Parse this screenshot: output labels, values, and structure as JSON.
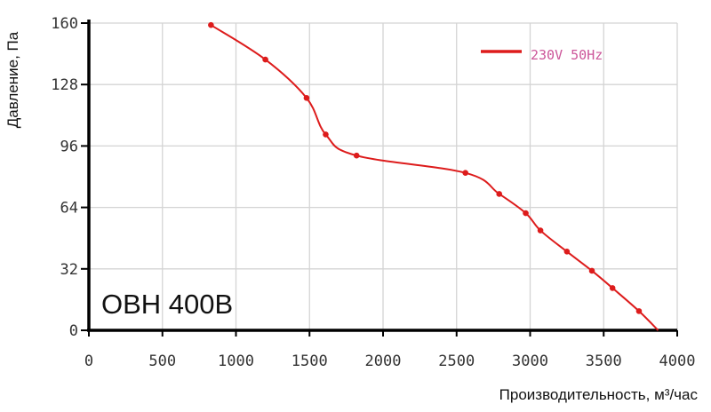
{
  "chart_data": {
    "type": "line",
    "title": "",
    "model_label": "OBH 400B",
    "xlabel": "Производительность, м³/час",
    "ylabel": "Давление, Па",
    "xlim": [
      0,
      4000
    ],
    "ylim": [
      0,
      160
    ],
    "xticks": [
      0,
      500,
      1000,
      1500,
      2000,
      2500,
      3000,
      3500,
      4000
    ],
    "yticks": [
      0,
      32,
      64,
      96,
      128,
      160
    ],
    "xtick_labels": [
      "0",
      "500",
      "1000",
      "1500",
      "2000",
      "2500",
      "3000",
      "3500",
      "4000"
    ],
    "ytick_labels": [
      "0",
      "32",
      "64",
      "96",
      "128",
      "160"
    ],
    "grid": true,
    "legend_position": "top-right",
    "series": [
      {
        "name": "230V 50Hz",
        "color": "#dd1c1c",
        "legend_text_color": "#cc5599",
        "points": [
          {
            "x": 830,
            "y": 159
          },
          {
            "x": 1200,
            "y": 141
          },
          {
            "x": 1480,
            "y": 121
          },
          {
            "x": 1610,
            "y": 102
          },
          {
            "x": 1820,
            "y": 91
          },
          {
            "x": 2560,
            "y": 82
          },
          {
            "x": 2790,
            "y": 71
          },
          {
            "x": 2970,
            "y": 61
          },
          {
            "x": 3070,
            "y": 52
          },
          {
            "x": 3250,
            "y": 41
          },
          {
            "x": 3420,
            "y": 31
          },
          {
            "x": 3560,
            "y": 22
          },
          {
            "x": 3740,
            "y": 10
          },
          {
            "x": 3870,
            "y": 0
          }
        ]
      }
    ]
  }
}
